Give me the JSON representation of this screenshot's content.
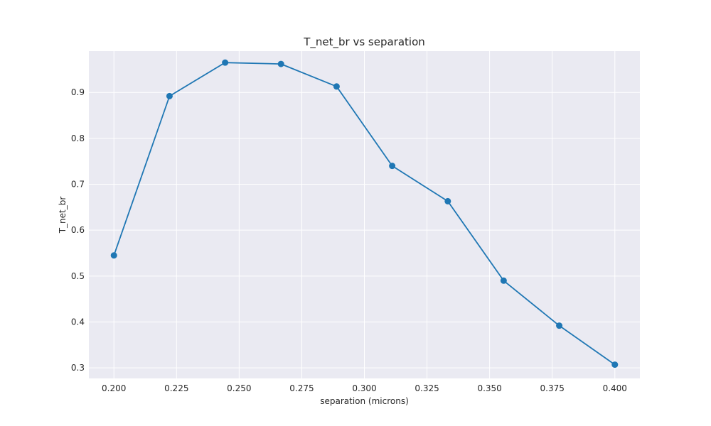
{
  "chart_data": {
    "type": "line",
    "title": "T_net_br vs separation",
    "xlabel": "separation (microns)",
    "ylabel": "T_net_br",
    "x": [
      0.2,
      0.2222,
      0.2444,
      0.2667,
      0.2889,
      0.3111,
      0.3333,
      0.3556,
      0.3778,
      0.4
    ],
    "series": [
      {
        "values": [
          0.545,
          0.892,
          0.965,
          0.962,
          0.913,
          0.74,
          0.663,
          0.49,
          0.392,
          0.307
        ]
      }
    ],
    "xlim": [
      0.19,
      0.41
    ],
    "ylim": [
      0.277,
      0.99
    ],
    "xticks": [
      "0.200",
      "0.225",
      "0.250",
      "0.275",
      "0.300",
      "0.325",
      "0.350",
      "0.375",
      "0.400"
    ],
    "yticks": [
      "0.3",
      "0.4",
      "0.5",
      "0.6",
      "0.7",
      "0.8",
      "0.9"
    ],
    "grid": true,
    "line_color": "#1f77b4",
    "plot_background": "#eaeaf2",
    "grid_color": "#ffffff"
  }
}
